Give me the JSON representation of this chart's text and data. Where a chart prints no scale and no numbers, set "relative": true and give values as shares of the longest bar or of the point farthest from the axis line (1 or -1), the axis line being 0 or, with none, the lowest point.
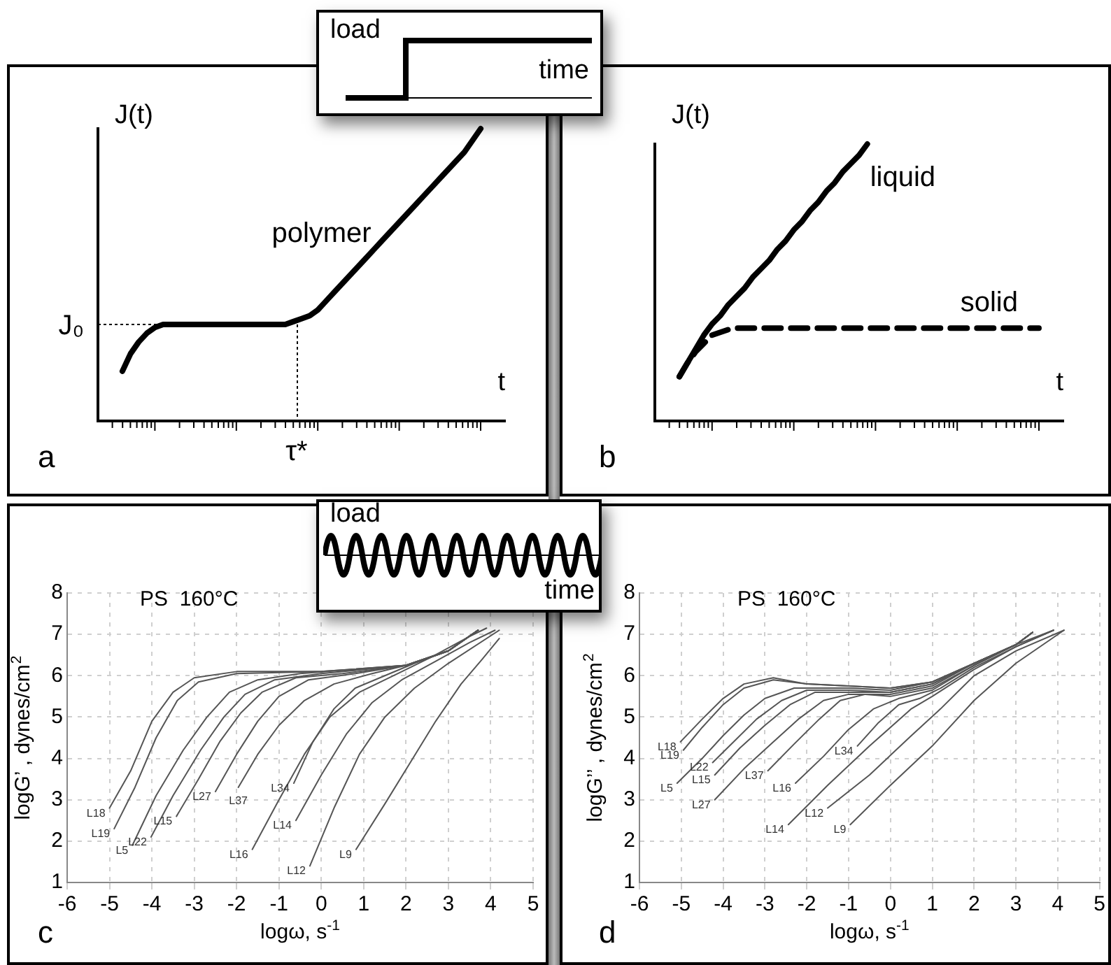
{
  "chart_data": [
    {
      "type": "line",
      "relative": true,
      "ylabel": "J(t)",
      "xlabel": "t",
      "categories": [
        null,
        null,
        null,
        null,
        null,
        null,
        null,
        null,
        null,
        null,
        null,
        null,
        null,
        null,
        null,
        null,
        null,
        null,
        null,
        null,
        null,
        null,
        null,
        null,
        null,
        null,
        null,
        null,
        null,
        null,
        null,
        null,
        null,
        null,
        null,
        null,
        null,
        null,
        null,
        null,
        null,
        null,
        null,
        null,
        null,
        null,
        null,
        null,
        null,
        null,
        null
      ],
      "series": [
        {
          "name": "polymer",
          "color": "#000000",
          "values": [
            null,
            null,
            null,
            0.17,
            0.23,
            0.27,
            0.3,
            0.32,
            0.33,
            0.33,
            0.33,
            0.33,
            0.33,
            0.33,
            0.33,
            0.33,
            0.33,
            0.33,
            0.33,
            0.33,
            0.33,
            0.33,
            0.33,
            0.33,
            0.34,
            0.35,
            0.36,
            0.38,
            0.41,
            0.44,
            0.47,
            0.5,
            0.53,
            0.56,
            0.59,
            0.62,
            0.65,
            0.68,
            0.71,
            0.74,
            0.77,
            0.8,
            0.83,
            0.86,
            0.89,
            0.92,
            0.96,
            1.0,
            null,
            null,
            null
          ]
        }
      ],
      "ref_lines": [
        {
          "axis": "y",
          "value": 0.33,
          "label": "J₀",
          "line_style": "dotted"
        }
      ],
      "annotations": [
        "load",
        "time",
        "a",
        "τ*"
      ]
    },
    {
      "type": "line",
      "relative": true,
      "ylabel": "J(t)",
      "xlabel": "t",
      "categories": [
        null,
        null,
        null,
        null,
        null,
        null,
        null,
        null,
        null,
        null,
        null,
        null,
        null,
        null,
        null,
        null,
        null,
        null,
        null,
        null,
        null,
        null,
        null,
        null,
        null,
        null,
        null,
        null,
        null,
        null,
        null,
        null,
        null,
        null,
        null,
        null,
        null,
        null,
        null,
        null,
        null,
        null,
        null,
        null,
        null,
        null,
        null,
        null,
        null,
        null,
        null
      ],
      "series": [
        {
          "name": "liquid",
          "color": "#000000",
          "values": [
            null,
            null,
            null,
            0.16,
            0.21,
            0.26,
            0.31,
            0.35,
            0.38,
            0.42,
            0.45,
            0.48,
            0.52,
            0.55,
            0.58,
            0.62,
            0.65,
            0.69,
            0.72,
            0.76,
            0.79,
            0.83,
            0.86,
            0.9,
            0.93,
            0.96,
            1.0,
            null,
            null,
            null,
            null,
            null,
            null,
            null,
            null,
            null,
            null,
            null,
            null,
            null,
            null,
            null,
            null,
            null,
            null,
            null,
            null,
            null,
            null,
            null,
            null
          ]
        },
        {
          "name": "solid",
          "color": "#000000",
          "line_style": "dashed",
          "values": [
            null,
            null,
            null,
            0.16,
            0.21,
            0.25,
            0.28,
            0.31,
            0.32,
            0.33,
            0.335,
            0.335,
            0.335,
            0.335,
            0.335,
            0.335,
            0.335,
            0.335,
            0.335,
            0.335,
            0.335,
            0.335,
            0.335,
            0.335,
            0.335,
            0.335,
            0.335,
            0.335,
            0.335,
            0.335,
            0.335,
            0.335,
            0.335,
            0.335,
            0.335,
            0.335,
            0.335,
            0.335,
            0.335,
            0.335,
            0.335,
            0.335,
            0.335,
            0.335,
            0.335,
            0.335,
            0.335,
            0.335,
            null,
            null,
            null
          ]
        }
      ],
      "annotations": [
        "b"
      ]
    },
    {
      "type": "line",
      "xlabel": "logω, s$^{-1}$",
      "ylabel": "logG’ , dynes/cm$^{2}$",
      "xlim": [
        -6,
        5
      ],
      "xticks": [
        -6,
        -5,
        -4,
        -3,
        -2,
        -1,
        0,
        1,
        2,
        3,
        4,
        5
      ],
      "ylim": [
        1,
        8
      ],
      "yticks": [
        1,
        2,
        3,
        4,
        5,
        6,
        7,
        8
      ],
      "grid": true,
      "series": [
        {
          "name": "L18",
          "color": "#555555",
          "x": [
            -5.0,
            -4.5,
            -4.0,
            -3.5,
            -3.0,
            -2,
            0,
            2,
            3,
            3.7
          ],
          "values": [
            2.8,
            3.7,
            4.9,
            5.6,
            5.95,
            6.1,
            6.1,
            6.25,
            6.6,
            7.1
          ]
        },
        {
          "name": "L19",
          "color": "#555555",
          "x": [
            -4.89,
            -4.4,
            -3.9,
            -3.4,
            -2.9,
            -2,
            0,
            2,
            3,
            3.7
          ],
          "values": [
            2.3,
            3.3,
            4.5,
            5.4,
            5.85,
            6.05,
            6.1,
            6.25,
            6.6,
            7.1
          ]
        },
        {
          "name": "L5",
          "color": "#555555",
          "x": [
            -4.46,
            -3.9,
            -3.26,
            -2.7,
            -2.17,
            -1.5,
            -0.5,
            2,
            3,
            3.7
          ],
          "values": [
            1.9,
            3.1,
            4.2,
            5.0,
            5.6,
            5.9,
            6.05,
            6.25,
            6.6,
            7.1
          ]
        },
        {
          "name": "L22",
          "color": "#555555",
          "x": [
            -4.02,
            -3.5,
            -2.85,
            -2.3,
            -1.8,
            -1.1,
            0,
            2,
            3,
            3.7
          ],
          "values": [
            2.1,
            3.1,
            4.2,
            5.0,
            5.55,
            5.9,
            6.05,
            6.25,
            6.6,
            7.1
          ]
        },
        {
          "name": "L15",
          "color": "#555555",
          "x": [
            -3.42,
            -2.9,
            -2.4,
            -1.9,
            -1.4,
            -0.6,
            0.5,
            2,
            3,
            3.7
          ],
          "values": [
            2.6,
            3.5,
            4.4,
            5.1,
            5.6,
            5.95,
            6.05,
            6.25,
            6.6,
            7.1
          ]
        },
        {
          "name": "L27",
          "color": "#555555",
          "x": [
            -2.5,
            -2.0,
            -1.5,
            -1.0,
            -0.3,
            0.8,
            2,
            3,
            3.7
          ],
          "values": [
            3.2,
            4.1,
            4.9,
            5.5,
            5.9,
            6.05,
            6.25,
            6.6,
            7.1
          ]
        },
        {
          "name": "L37",
          "color": "#555555",
          "x": [
            -1.96,
            -1.5,
            -1.0,
            -0.4,
            0.3,
            1.2,
            2,
            3,
            3.7
          ],
          "values": [
            3.3,
            4.1,
            4.8,
            5.4,
            5.8,
            6.05,
            6.25,
            6.6,
            7.1
          ]
        },
        {
          "name": "L34",
          "color": "#555555",
          "x": [
            -0.65,
            -0.2,
            0.3,
            0.8,
            1.5,
            2.2,
            3,
            3.7
          ],
          "values": [
            3.4,
            4.4,
            5.2,
            5.7,
            6.0,
            6.3,
            6.6,
            7.1
          ]
        },
        {
          "name": "L16",
          "color": "#555555",
          "x": [
            -1.63,
            -1.0,
            -0.4,
            0.2,
            0.9,
            1.8,
            2.6,
            3.5,
            3.9
          ],
          "values": [
            1.8,
            3.0,
            4.1,
            5.0,
            5.6,
            6.05,
            6.45,
            6.95,
            7.15
          ]
        },
        {
          "name": "L14",
          "color": "#555555",
          "x": [
            -0.6,
            0,
            0.6,
            1.2,
            1.9,
            2.7,
            3.5,
            4.1
          ],
          "values": [
            2.5,
            3.6,
            4.6,
            5.35,
            5.9,
            6.35,
            6.8,
            7.1
          ]
        },
        {
          "name": "L12",
          "color": "#555555",
          "x": [
            -0.27,
            0.3,
            0.9,
            1.5,
            2.2,
            3,
            4.2
          ],
          "values": [
            1.4,
            2.8,
            4.1,
            5.0,
            5.7,
            6.3,
            7.1
          ]
        },
        {
          "name": "L9",
          "color": "#555555",
          "x": [
            0.82,
            1.5,
            2.1,
            2.7,
            3.3,
            3.8,
            4.2
          ],
          "values": [
            1.8,
            2.9,
            3.9,
            4.9,
            5.8,
            6.4,
            6.9
          ]
        }
      ],
      "annotations": [
        "load",
        "time",
        "PS  160°C",
        "c"
      ]
    },
    {
      "type": "line",
      "xlabel": "logω, s$^{-1}$",
      "ylabel": "logG’’ , dynes/cm$^{2}$",
      "xlim": [
        -6,
        5
      ],
      "xticks": [
        -6,
        -5,
        -4,
        -3,
        -2,
        -1,
        0,
        1,
        2,
        3,
        4,
        5
      ],
      "ylim": [
        1,
        8
      ],
      "yticks": [
        1,
        2,
        3,
        4,
        5,
        6,
        7,
        8
      ],
      "grid": true,
      "series": [
        {
          "name": "L18",
          "color": "#555555",
          "x": [
            -5.02,
            -4.5,
            -4,
            -3.5,
            -2.8,
            -2,
            -1,
            0,
            1,
            2,
            3,
            3.4
          ],
          "values": [
            4.4,
            4.95,
            5.45,
            5.8,
            5.95,
            5.8,
            5.75,
            5.7,
            5.85,
            6.3,
            6.75,
            7.05
          ]
        },
        {
          "name": "L19",
          "color": "#555555",
          "x": [
            -4.95,
            -4.5,
            -4,
            -3.5,
            -2.8,
            -2,
            -1,
            0,
            1,
            2,
            3,
            3.4
          ],
          "values": [
            4.2,
            4.75,
            5.3,
            5.7,
            5.9,
            5.8,
            5.75,
            5.7,
            5.85,
            6.3,
            6.75,
            7.05
          ]
        },
        {
          "name": "L5",
          "color": "#555555",
          "x": [
            -5.1,
            -4.5,
            -4,
            -3.5,
            -3,
            -2.3,
            -1,
            0,
            1,
            2,
            3,
            3.4
          ],
          "values": [
            3.4,
            4.0,
            4.55,
            5.05,
            5.45,
            5.7,
            5.7,
            5.65,
            5.85,
            6.3,
            6.75,
            7.05
          ]
        },
        {
          "name": "L22",
          "color": "#555555",
          "x": [
            -4.25,
            -3.7,
            -3.2,
            -2.6,
            -2,
            -1,
            0,
            1,
            2,
            3,
            3.4
          ],
          "values": [
            3.9,
            4.45,
            4.95,
            5.4,
            5.65,
            5.65,
            5.6,
            5.8,
            6.3,
            6.75,
            7.05
          ]
        },
        {
          "name": "L15",
          "color": "#555555",
          "x": [
            -4.2,
            -3.6,
            -3,
            -2.4,
            -1.8,
            -1,
            0,
            1,
            2,
            3,
            3.4
          ],
          "values": [
            3.6,
            4.25,
            4.8,
            5.3,
            5.6,
            5.6,
            5.6,
            5.8,
            6.3,
            6.75,
            7.05
          ]
        },
        {
          "name": "L27",
          "color": "#555555",
          "x": [
            -4.2,
            -3.5,
            -2.8,
            -2.2,
            -1.6,
            -1,
            0,
            1,
            2,
            3,
            3.4
          ],
          "values": [
            3.0,
            3.75,
            4.4,
            4.95,
            5.4,
            5.55,
            5.55,
            5.75,
            6.3,
            6.75,
            7.05
          ]
        },
        {
          "name": "L37",
          "color": "#555555",
          "x": [
            -2.93,
            -2.3,
            -1.7,
            -1.2,
            -0.6,
            0,
            1,
            2,
            3,
            3.4
          ],
          "values": [
            3.7,
            4.35,
            4.95,
            5.4,
            5.55,
            5.5,
            5.7,
            6.25,
            6.75,
            7.05
          ]
        },
        {
          "name": "L16",
          "color": "#555555",
          "x": [
            -2.27,
            -1.6,
            -1,
            -0.4,
            0.2,
            1,
            2,
            3,
            3.9
          ],
          "values": [
            3.4,
            4.05,
            4.7,
            5.2,
            5.45,
            5.65,
            6.25,
            6.75,
            7.1
          ]
        },
        {
          "name": "L34",
          "color": "#555555",
          "x": [
            -0.79,
            -0.3,
            0.2,
            0.7,
            1.2,
            2,
            3,
            3.9
          ],
          "values": [
            4.3,
            4.85,
            5.3,
            5.45,
            5.7,
            6.2,
            6.7,
            7.1
          ]
        },
        {
          "name": "L14",
          "color": "#555555",
          "x": [
            -2.44,
            -1.5,
            -0.5,
            0.5,
            1,
            2,
            3,
            3.9
          ],
          "values": [
            2.4,
            3.35,
            4.3,
            5.2,
            5.5,
            6.15,
            6.7,
            7.1
          ]
        },
        {
          "name": "L12",
          "color": "#555555",
          "x": [
            -1.5,
            -0.5,
            0.5,
            1.2,
            2,
            3,
            4.15
          ],
          "values": [
            2.8,
            3.6,
            4.55,
            5.2,
            6.0,
            6.6,
            7.1
          ]
        },
        {
          "name": "L9",
          "color": "#555555",
          "x": [
            -0.96,
            0,
            1,
            2,
            3,
            4.15
          ],
          "values": [
            2.4,
            3.35,
            4.3,
            5.4,
            6.3,
            7.1
          ]
        }
      ],
      "annotations": [
        "PS  160°C",
        "d"
      ]
    }
  ]
}
